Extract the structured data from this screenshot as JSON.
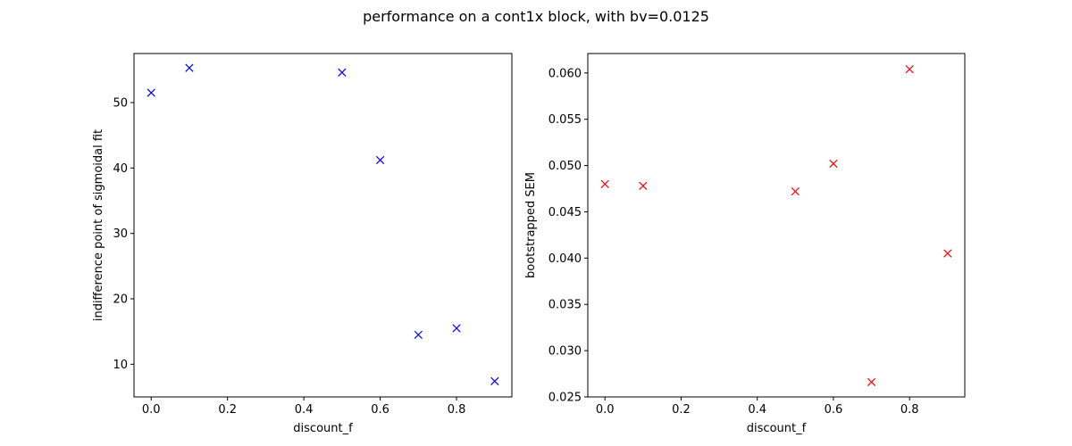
{
  "figure": {
    "suptitle": "performance on a cont1x block, with bv=0.0125"
  },
  "chart_data": [
    {
      "type": "scatter",
      "marker": "x",
      "color": "#0000ff",
      "xlabel": "discount_f",
      "ylabel": "indifference point of sigmoidal fit",
      "xlim": [
        -0.045,
        0.945
      ],
      "ylim": [
        5.0,
        57.5
      ],
      "xticks": [
        0.0,
        0.2,
        0.4,
        0.6,
        0.8
      ],
      "xtick_labels": [
        "0.0",
        "0.2",
        "0.4",
        "0.6",
        "0.8"
      ],
      "yticks": [
        10,
        20,
        30,
        40,
        50
      ],
      "ytick_labels": [
        "10",
        "20",
        "30",
        "40",
        "50"
      ],
      "grid": false,
      "x": [
        0.0,
        0.1,
        0.5,
        0.6,
        0.7,
        0.8,
        0.9
      ],
      "y": [
        51.5,
        55.3,
        54.6,
        41.2,
        14.5,
        15.5,
        7.4
      ]
    },
    {
      "type": "scatter",
      "marker": "x",
      "color": "#ff0000",
      "xlabel": "discount_f",
      "ylabel": "bootstrapped SEM",
      "xlim": [
        -0.045,
        0.945
      ],
      "ylim": [
        0.025,
        0.0621
      ],
      "xticks": [
        0.0,
        0.2,
        0.4,
        0.6,
        0.8
      ],
      "xtick_labels": [
        "0.0",
        "0.2",
        "0.4",
        "0.6",
        "0.8"
      ],
      "yticks": [
        0.025,
        0.03,
        0.035,
        0.04,
        0.045,
        0.05,
        0.055,
        0.06
      ],
      "ytick_labels": [
        "0.025",
        "0.030",
        "0.035",
        "0.040",
        "0.045",
        "0.050",
        "0.055",
        "0.060"
      ],
      "grid": false,
      "x": [
        0.0,
        0.1,
        0.5,
        0.6,
        0.7,
        0.8,
        0.9
      ],
      "y": [
        0.048,
        0.0478,
        0.0472,
        0.0502,
        0.0266,
        0.0604,
        0.0405
      ]
    }
  ]
}
